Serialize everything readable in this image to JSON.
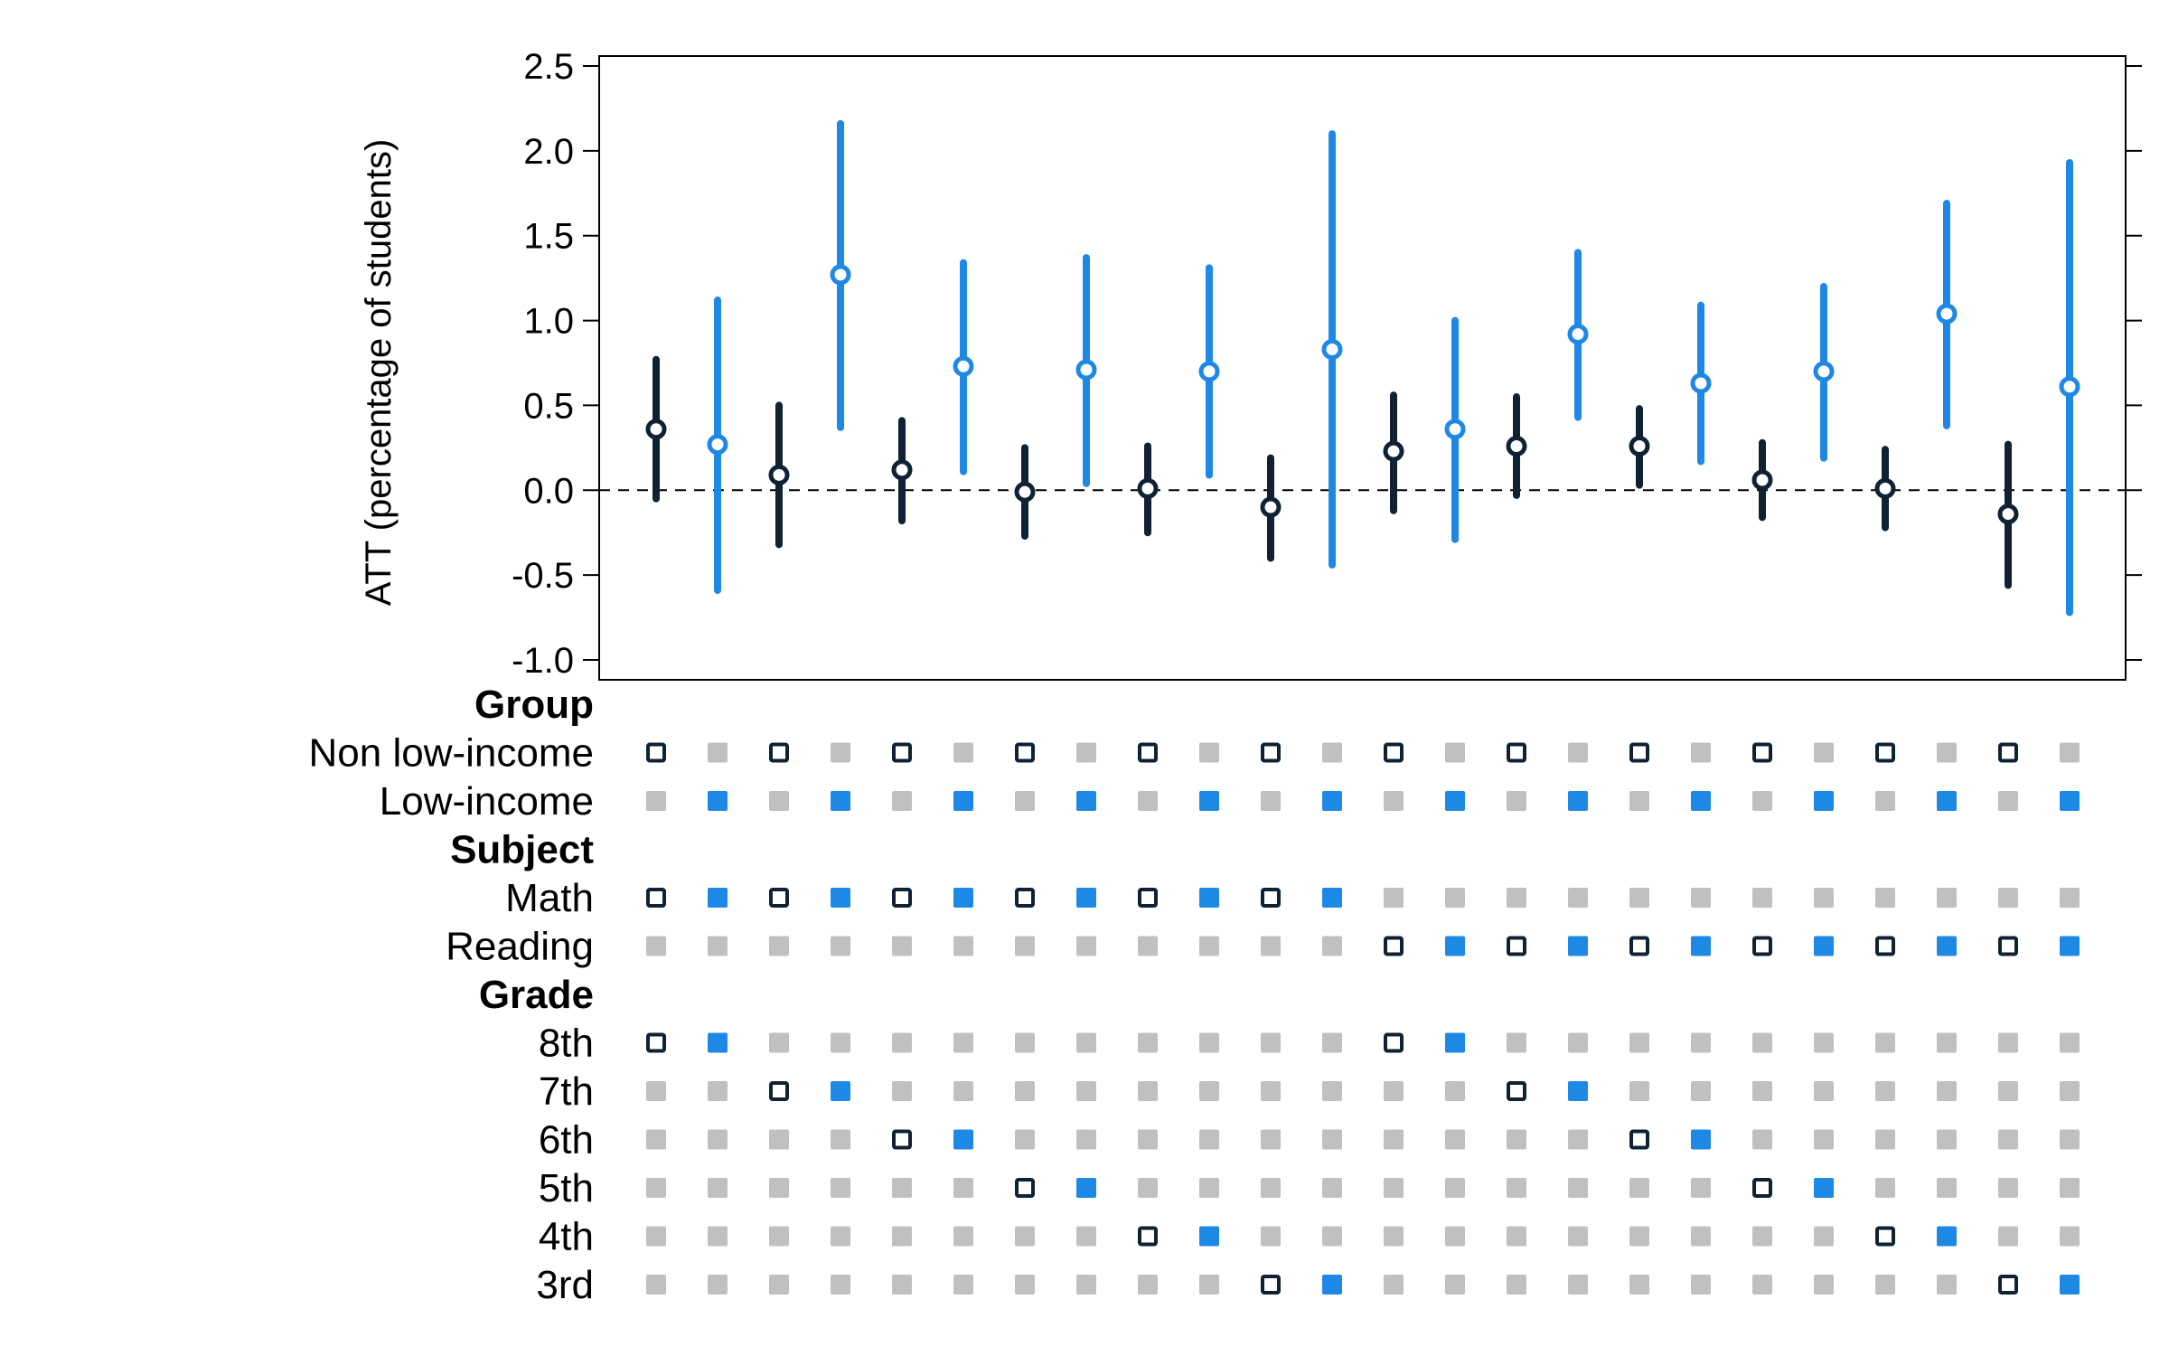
{
  "chart_data": {
    "type": "scatter",
    "ylabel": "ATT (percentage of students)",
    "ylim": [
      -1.0,
      2.5
    ],
    "yticks": [
      "-1.0",
      "-0.5",
      "0.0",
      "0.5",
      "1.0",
      "1.5",
      "2.0",
      "2.5"
    ],
    "reference_line": 0,
    "colors": {
      "non_low_income": "#0f2233",
      "low_income": "#1e88e5",
      "inactive": "#c0c0c0"
    },
    "estimates": [
      {
        "group": "Non low-income",
        "subject": "Math",
        "grade": "8th",
        "att": 0.36,
        "lo": -0.05,
        "hi": 0.77
      },
      {
        "group": "Low-income",
        "subject": "Math",
        "grade": "8th",
        "att": 0.27,
        "lo": -0.59,
        "hi": 1.12
      },
      {
        "group": "Non low-income",
        "subject": "Math",
        "grade": "7th",
        "att": 0.09,
        "lo": -0.32,
        "hi": 0.5
      },
      {
        "group": "Low-income",
        "subject": "Math",
        "grade": "7th",
        "att": 1.27,
        "lo": 0.37,
        "hi": 2.16
      },
      {
        "group": "Non low-income",
        "subject": "Math",
        "grade": "6th",
        "att": 0.12,
        "lo": -0.18,
        "hi": 0.41
      },
      {
        "group": "Low-income",
        "subject": "Math",
        "grade": "6th",
        "att": 0.73,
        "lo": 0.11,
        "hi": 1.34
      },
      {
        "group": "Non low-income",
        "subject": "Math",
        "grade": "5th",
        "att": -0.01,
        "lo": -0.27,
        "hi": 0.25
      },
      {
        "group": "Low-income",
        "subject": "Math",
        "grade": "5th",
        "att": 0.71,
        "lo": 0.04,
        "hi": 1.37
      },
      {
        "group": "Non low-income",
        "subject": "Math",
        "grade": "4th",
        "att": 0.01,
        "lo": -0.25,
        "hi": 0.26
      },
      {
        "group": "Low-income",
        "subject": "Math",
        "grade": "4th",
        "att": 0.7,
        "lo": 0.09,
        "hi": 1.31
      },
      {
        "group": "Non low-income",
        "subject": "Math",
        "grade": "3rd",
        "att": -0.1,
        "lo": -0.4,
        "hi": 0.19
      },
      {
        "group": "Low-income",
        "subject": "Math",
        "grade": "3rd",
        "att": 0.83,
        "lo": -0.44,
        "hi": 2.1
      },
      {
        "group": "Non low-income",
        "subject": "Reading",
        "grade": "8th",
        "att": 0.23,
        "lo": -0.12,
        "hi": 0.56
      },
      {
        "group": "Low-income",
        "subject": "Reading",
        "grade": "8th",
        "att": 0.36,
        "lo": -0.29,
        "hi": 1.0
      },
      {
        "group": "Non low-income",
        "subject": "Reading",
        "grade": "7th",
        "att": 0.26,
        "lo": -0.03,
        "hi": 0.55
      },
      {
        "group": "Low-income",
        "subject": "Reading",
        "grade": "7th",
        "att": 0.92,
        "lo": 0.43,
        "hi": 1.4
      },
      {
        "group": "Non low-income",
        "subject": "Reading",
        "grade": "6th",
        "att": 0.26,
        "lo": 0.03,
        "hi": 0.48
      },
      {
        "group": "Low-income",
        "subject": "Reading",
        "grade": "6th",
        "att": 0.63,
        "lo": 0.17,
        "hi": 1.09
      },
      {
        "group": "Non low-income",
        "subject": "Reading",
        "grade": "5th",
        "att": 0.06,
        "lo": -0.16,
        "hi": 0.28
      },
      {
        "group": "Low-income",
        "subject": "Reading",
        "grade": "5th",
        "att": 0.7,
        "lo": 0.19,
        "hi": 1.2
      },
      {
        "group": "Non low-income",
        "subject": "Reading",
        "grade": "4th",
        "att": 0.01,
        "lo": -0.22,
        "hi": 0.24
      },
      {
        "group": "Low-income",
        "subject": "Reading",
        "grade": "4th",
        "att": 1.04,
        "lo": 0.38,
        "hi": 1.69
      },
      {
        "group": "Non low-income",
        "subject": "Reading",
        "grade": "3rd",
        "att": -0.14,
        "lo": -0.56,
        "hi": 0.27
      },
      {
        "group": "Low-income",
        "subject": "Reading",
        "grade": "3rd",
        "att": 0.61,
        "lo": -0.72,
        "hi": 1.93
      }
    ],
    "matrix": [
      {
        "kind": "section",
        "label": "Group"
      },
      {
        "kind": "row",
        "label": "Non low-income",
        "field": "group",
        "value": "Non low-income"
      },
      {
        "kind": "row",
        "label": "Low-income",
        "field": "group",
        "value": "Low-income"
      },
      {
        "kind": "section",
        "label": "Subject"
      },
      {
        "kind": "row",
        "label": "Math",
        "field": "subject",
        "value": "Math"
      },
      {
        "kind": "row",
        "label": "Reading",
        "field": "subject",
        "value": "Reading"
      },
      {
        "kind": "section",
        "label": "Grade"
      },
      {
        "kind": "row",
        "label": "8th",
        "field": "grade",
        "value": "8th"
      },
      {
        "kind": "row",
        "label": "7th",
        "field": "grade",
        "value": "7th"
      },
      {
        "kind": "row",
        "label": "6th",
        "field": "grade",
        "value": "6th"
      },
      {
        "kind": "row",
        "label": "5th",
        "field": "grade",
        "value": "5th"
      },
      {
        "kind": "row",
        "label": "4th",
        "field": "grade",
        "value": "4th"
      },
      {
        "kind": "row",
        "label": "3rd",
        "field": "grade",
        "value": "3rd"
      }
    ]
  }
}
